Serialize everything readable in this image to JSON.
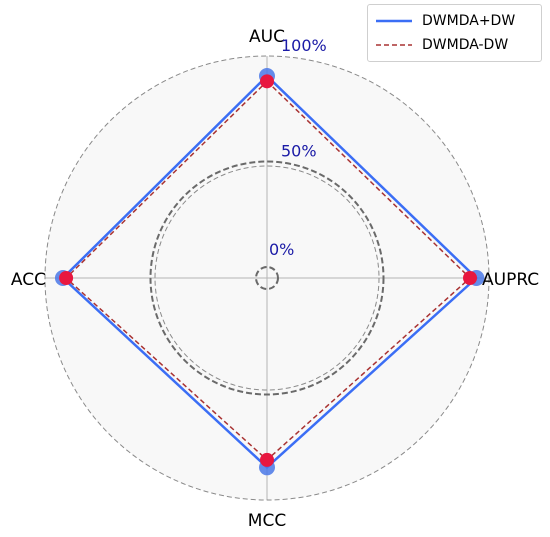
{
  "chart_data": {
    "type": "radar",
    "axes": [
      "AUC",
      "AUPRC",
      "MCC",
      "ACC"
    ],
    "ring_labels": [
      "0%",
      "50%",
      "100%"
    ],
    "ring_values": [
      0,
      50,
      100
    ],
    "range": [
      0,
      100
    ],
    "grid": true,
    "legend_position": "top-right",
    "series": [
      {
        "name": "DWMDA+DW",
        "values": [
          90.5,
          94.0,
          84.5,
          91.5
        ],
        "color": "#3b6ef5",
        "linestyle": "solid"
      },
      {
        "name": "DWMDA-DW",
        "values": [
          88.0,
          91.0,
          81.0,
          90.0
        ],
        "color": "#a83232",
        "linestyle": "dashed"
      }
    ],
    "marker_colors": {
      "outer": "#4a78e8",
      "inner": "#e8173f"
    }
  }
}
